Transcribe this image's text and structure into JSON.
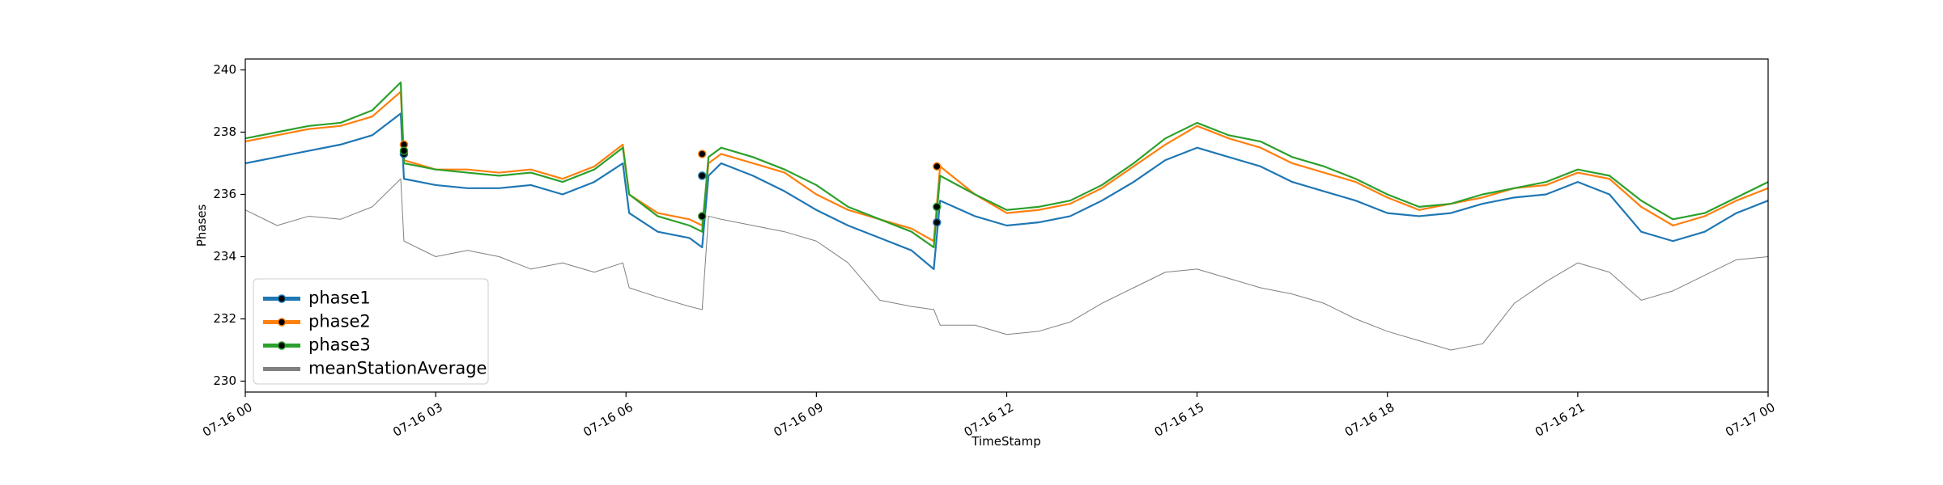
{
  "chart_data": {
    "type": "line",
    "xlabel": "TimeStamp",
    "ylabel": "Phases",
    "x": [
      0,
      0.5,
      1,
      1.5,
      2,
      2.45,
      2.5,
      3,
      3.5,
      4,
      4.5,
      5,
      5.5,
      5.95,
      6.05,
      6.5,
      7,
      7.2,
      7.3,
      7.5,
      8,
      8.5,
      9,
      9.5,
      10,
      10.5,
      10.85,
      10.95,
      11.5,
      12,
      12.5,
      13,
      13.5,
      14,
      14.5,
      15,
      15.5,
      16,
      16.5,
      17,
      17.5,
      18,
      18.5,
      19,
      19.5,
      20,
      20.5,
      21,
      21.5,
      22,
      22.5,
      23,
      23.5,
      24
    ],
    "series": [
      {
        "name": "phase1",
        "color": "#1f77b4",
        "values": [
          237.0,
          237.2,
          237.4,
          237.6,
          237.9,
          238.6,
          236.5,
          236.3,
          236.2,
          236.2,
          236.3,
          236.0,
          236.4,
          237.0,
          235.4,
          234.8,
          234.6,
          234.3,
          236.6,
          237.0,
          236.6,
          236.1,
          235.5,
          235.0,
          234.6,
          234.2,
          233.6,
          235.8,
          235.3,
          235.0,
          235.1,
          235.3,
          235.8,
          236.4,
          237.1,
          237.5,
          237.2,
          236.9,
          236.4,
          236.1,
          235.8,
          235.4,
          235.3,
          235.4,
          235.7,
          235.9,
          236.0,
          236.4,
          236.0,
          234.8,
          234.5,
          234.8,
          235.4,
          235.8
        ],
        "markers": {
          "x": [
            2.5,
            7.2,
            10.9
          ],
          "values": [
            237.3,
            236.6,
            235.1
          ]
        }
      },
      {
        "name": "phase2",
        "color": "#ff7f0e",
        "values": [
          237.7,
          237.9,
          238.1,
          238.2,
          238.5,
          239.3,
          237.1,
          236.8,
          236.8,
          236.7,
          236.8,
          236.5,
          236.9,
          237.6,
          236.0,
          235.4,
          235.2,
          235.0,
          237.0,
          237.3,
          237.0,
          236.7,
          236.0,
          235.5,
          235.2,
          234.9,
          234.5,
          236.9,
          236.0,
          235.4,
          235.5,
          235.7,
          236.2,
          236.9,
          237.6,
          238.2,
          237.8,
          237.5,
          237.0,
          236.7,
          236.4,
          235.9,
          235.5,
          235.7,
          235.9,
          236.2,
          236.3,
          236.7,
          236.5,
          235.6,
          235.0,
          235.3,
          235.8,
          236.2
        ],
        "markers": {
          "x": [
            2.5,
            7.2,
            10.9
          ],
          "values": [
            237.6,
            237.3,
            236.9
          ]
        }
      },
      {
        "name": "phase3",
        "color": "#2ca02c",
        "values": [
          237.8,
          238.0,
          238.2,
          238.3,
          238.7,
          239.6,
          237.0,
          236.8,
          236.7,
          236.6,
          236.7,
          236.4,
          236.8,
          237.5,
          236.0,
          235.3,
          235.0,
          234.8,
          237.2,
          237.5,
          237.2,
          236.8,
          236.3,
          235.6,
          235.2,
          234.8,
          234.3,
          236.6,
          236.0,
          235.5,
          235.6,
          235.8,
          236.3,
          237.0,
          237.8,
          238.3,
          237.9,
          237.7,
          237.2,
          236.9,
          236.5,
          236.0,
          235.6,
          235.7,
          236.0,
          236.2,
          236.4,
          236.8,
          236.6,
          235.8,
          235.2,
          235.4,
          235.9,
          236.4
        ],
        "markers": {
          "x": [
            2.5,
            7.2,
            10.9
          ],
          "values": [
            237.4,
            235.3,
            235.6
          ]
        }
      },
      {
        "name": "meanStationAverage",
        "color": "#808080",
        "values": [
          235.5,
          235.0,
          235.3,
          235.2,
          235.6,
          236.5,
          234.5,
          234.0,
          234.2,
          234.0,
          233.6,
          233.8,
          233.5,
          233.8,
          233.0,
          232.7,
          232.4,
          232.3,
          235.3,
          235.2,
          235.0,
          234.8,
          234.5,
          233.8,
          232.6,
          232.4,
          232.3,
          231.8,
          231.8,
          231.5,
          231.6,
          231.9,
          232.5,
          233.0,
          233.5,
          233.6,
          233.3,
          233.0,
          232.8,
          232.5,
          232.0,
          231.6,
          231.3,
          231.0,
          231.2,
          232.5,
          233.2,
          233.8,
          233.5,
          232.6,
          232.9,
          233.4,
          233.9,
          234.0
        ]
      }
    ],
    "xlim": [
      0,
      24
    ],
    "xticks": [
      {
        "value": 0,
        "label": "07-16 00"
      },
      {
        "value": 3,
        "label": "07-16 03"
      },
      {
        "value": 6,
        "label": "07-16 06"
      },
      {
        "value": 9,
        "label": "07-16 09"
      },
      {
        "value": 12,
        "label": "07-16 12"
      },
      {
        "value": 15,
        "label": "07-16 15"
      },
      {
        "value": 18,
        "label": "07-16 18"
      },
      {
        "value": 21,
        "label": "07-16 21"
      },
      {
        "value": 24,
        "label": "07-17 00"
      }
    ],
    "ylim": [
      229.65,
      240.35
    ],
    "yticks": [
      230,
      232,
      234,
      236,
      238,
      240
    ],
    "legend": "lower left"
  }
}
